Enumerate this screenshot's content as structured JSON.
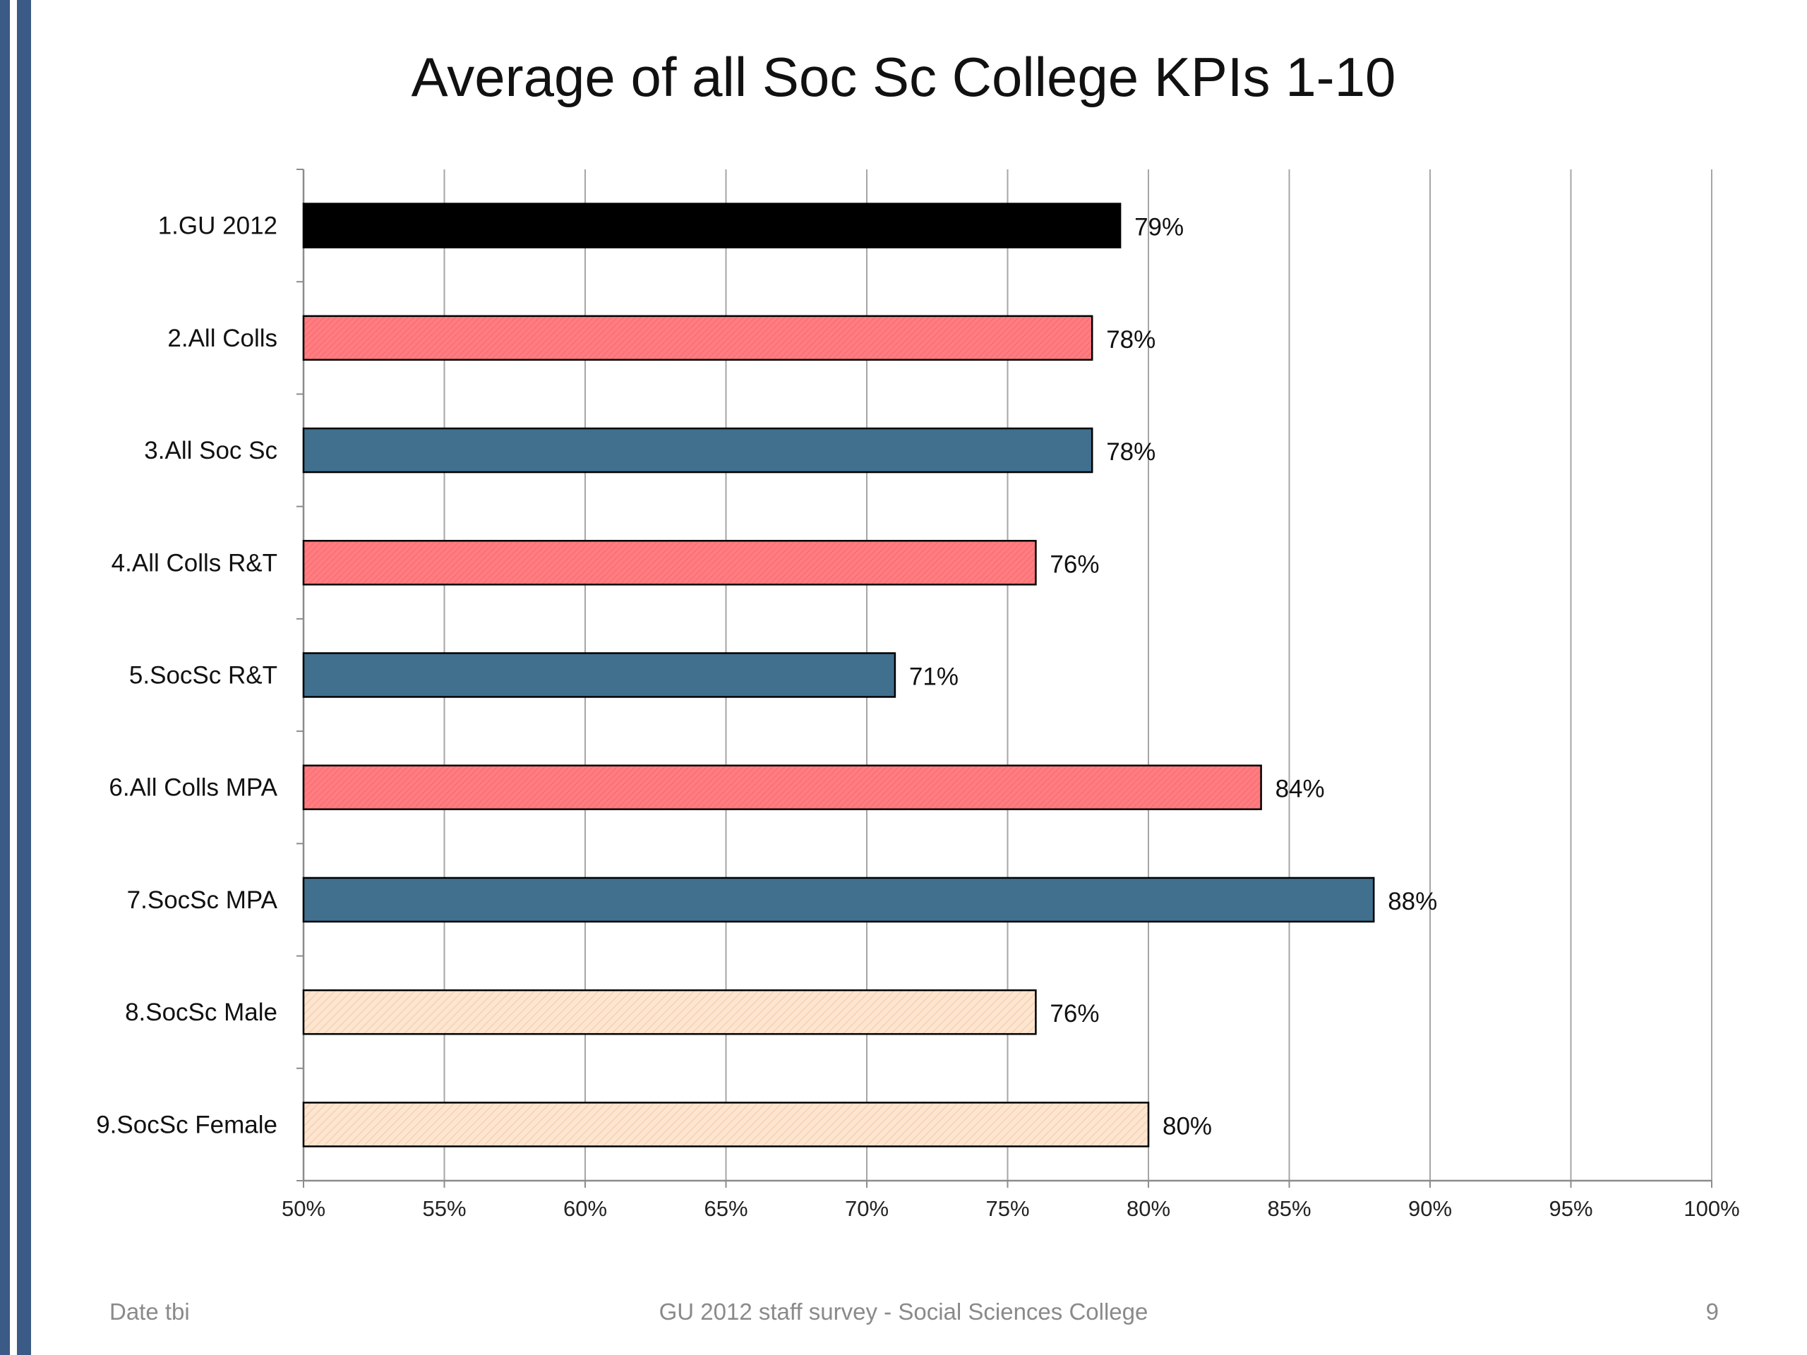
{
  "chart_data": {
    "type": "bar",
    "orientation": "horizontal",
    "title": "Average of all Soc Sc College KPIs 1-10",
    "xlabel": "",
    "ylabel": "",
    "xlim": [
      50,
      100
    ],
    "x_ticks": [
      "50%",
      "55%",
      "60%",
      "65%",
      "70%",
      "75%",
      "80%",
      "85%",
      "90%",
      "95%",
      "100%"
    ],
    "grid": "vertical",
    "legend": "none",
    "categories": [
      "1.GU 2012",
      "2.All Colls",
      "3.All Soc Sc",
      "4.All Colls R&T",
      "5.SocSc R&T",
      "6.All Colls MPA",
      "7.SocSc MPA",
      "8.SocSc Male",
      "9.SocSc Female"
    ],
    "values": [
      79,
      78,
      78,
      76,
      71,
      84,
      88,
      76,
      80
    ],
    "value_labels": [
      "79%",
      "78%",
      "78%",
      "76%",
      "71%",
      "84%",
      "88%",
      "76%",
      "80%"
    ],
    "bar_colors": [
      "#000000",
      "#ff7c80",
      "#41708f",
      "#ff7c80",
      "#41708f",
      "#ff7c80",
      "#41708f",
      "#fde5d0",
      "#fde5d0"
    ]
  },
  "footer": {
    "date": "Date tbi",
    "center": "GU 2012 staff survey -  Social Sciences College",
    "page": "9"
  },
  "colors": {
    "stripe_dark": "#3b5a85",
    "stripe_light": "#ffffff",
    "gridline": "#a6a6a6",
    "axis": "#8c8c8c"
  }
}
